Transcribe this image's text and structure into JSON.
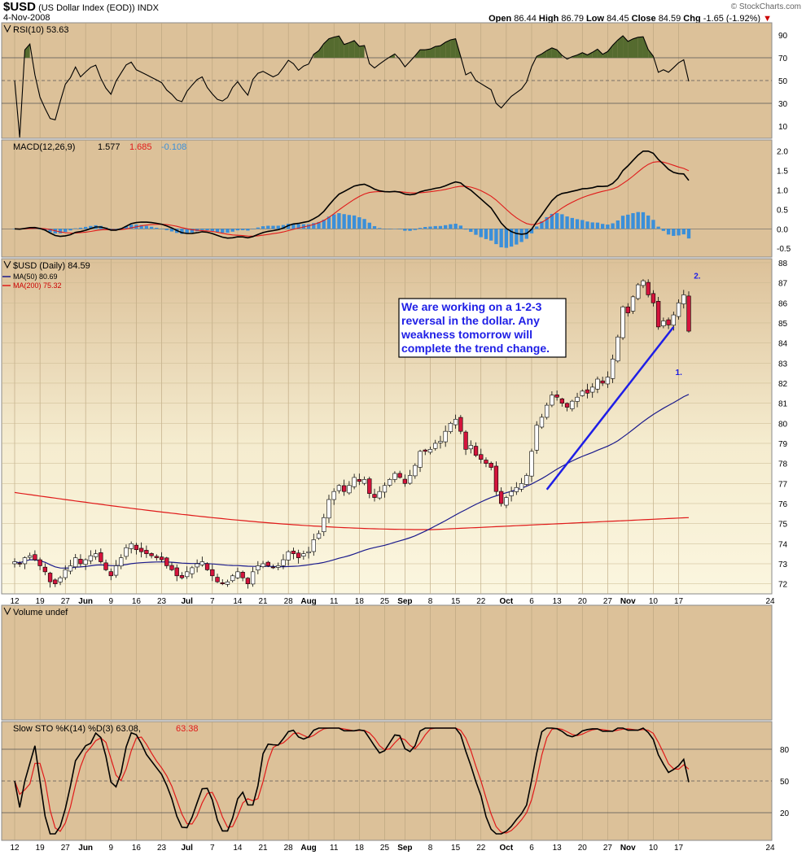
{
  "header": {
    "symbol": "$USD",
    "description": "(US Dollar Index (EOD))",
    "exchange": "INDX",
    "date": "4-Nov-2008",
    "watermark": "© StockCharts.com",
    "open_label": "Open",
    "open": "86.44",
    "high_label": "High",
    "high": "86.79",
    "low_label": "Low",
    "low": "84.45",
    "close_label": "Close",
    "close": "84.59",
    "chg_label": "Chg",
    "chg": "-1.65 (-1.92%)"
  },
  "colors": {
    "panel_bg": "#dcc199",
    "panel_bg_light": "#f5eccf",
    "up_candle": "#ffffff",
    "down_candle": "#d4143c",
    "ma50": "#1a1a8c",
    "ma200": "#e01a1a",
    "trendline": "#1e1ee6",
    "rsi_fill": "#556b2f",
    "macd_hist": "#3a8fd9"
  },
  "x_axis": {
    "labels": [
      "12",
      "19",
      "27",
      "Jun",
      "9",
      "16",
      "23",
      "Jul",
      "7",
      "14",
      "21",
      "28",
      "Aug",
      "11",
      "18",
      "25",
      "Sep",
      "8",
      "15",
      "22",
      "Oct",
      "6",
      "13",
      "20",
      "27",
      "Nov",
      "10",
      "17",
      "24"
    ],
    "bold_labels": [
      "Jun",
      "Jul",
      "Aug",
      "Sep",
      "Oct",
      "Nov"
    ]
  },
  "panels": {
    "rsi": {
      "title": "RSI(10) 53.63",
      "ticks": [
        "90",
        "70",
        "50",
        "30",
        "10"
      ]
    },
    "macd": {
      "title": "MACD(12,26,9)",
      "macd": "1.577",
      "signal": "1.685",
      "hist": "-0.108",
      "ticks": [
        "2.0",
        "1.5",
        "1.0",
        "0.5",
        "0.0",
        "-0.5"
      ]
    },
    "price": {
      "title": "$USD (Daily) 84.59",
      "ma50_label": "MA(50) 80.69",
      "ma200_label": "MA(200) 75.32",
      "ticks": [
        "88",
        "87",
        "86",
        "85",
        "84",
        "83",
        "82",
        "81",
        "80",
        "79",
        "78",
        "77",
        "76",
        "75",
        "74",
        "73",
        "72"
      ]
    },
    "volume": {
      "title": "Volume undef"
    },
    "sto": {
      "title": "Slow STO %K(14) %D(3) 63.08,",
      "d_value": "63.38",
      "ticks": [
        "80",
        "50",
        "20"
      ]
    }
  },
  "annotation": {
    "lines": [
      "We are working on a 1-2-3",
      "reversal in the dollar. Any",
      "weakness tomorrow will",
      "complete the trend change."
    ],
    "label_1": "1.",
    "label_2": "2."
  },
  "chart_data": {
    "type": "candlestick",
    "title": "$USD (US Dollar Index (EOD))",
    "date_range": [
      "2008-05-12",
      "2008-11-04"
    ],
    "last": {
      "date": "2008-11-04",
      "open": 86.44,
      "high": 86.79,
      "low": 84.45,
      "close": 84.59,
      "change": -1.65,
      "change_pct": -1.92
    },
    "price_ylim": [
      71.5,
      88.2
    ],
    "ma50_last": 80.69,
    "ma200_last": 75.32,
    "rsi_last": 53.63,
    "macd_last": {
      "macd": 1.577,
      "signal": 1.685,
      "histogram": -0.108
    },
    "slow_sto_last": {
      "k": 63.08,
      "d": 63.38
    },
    "close_series": [
      73.1,
      73.0,
      73.3,
      73.4,
      73.2,
      72.9,
      72.6,
      72.1,
      72.0,
      72.3,
      72.7,
      72.9,
      73.3,
      73.0,
      73.2,
      73.4,
      73.5,
      73.1,
      72.7,
      72.4,
      72.9,
      73.3,
      73.8,
      74.0,
      73.7,
      73.6,
      73.5,
      73.4,
      73.3,
      73.2,
      72.9,
      72.7,
      72.4,
      72.3,
      72.6,
      72.8,
      73.0,
      73.1,
      72.7,
      72.4,
      72.1,
      72.0,
      72.1,
      72.4,
      72.6,
      72.3,
      72.0,
      72.6,
      72.9,
      73.0,
      72.9,
      72.8,
      72.9,
      73.2,
      73.6,
      73.5,
      73.3,
      73.5,
      73.6,
      74.2,
      74.5,
      75.3,
      76.2,
      76.6,
      76.9,
      76.6,
      76.9,
      77.3,
      77.1,
      77.2,
      76.5,
      76.3,
      76.6,
      76.9,
      77.2,
      77.5,
      77.3,
      77.0,
      77.4,
      77.9,
      78.6,
      78.6,
      78.7,
      79.0,
      79.1,
      79.6,
      80.0,
      80.2,
      79.6,
      78.7,
      78.9,
      78.4,
      78.2,
      78.0,
      77.8,
      76.6,
      76.0,
      76.3,
      76.6,
      76.8,
      77.0,
      77.4,
      78.6,
      79.9,
      80.3,
      80.9,
      81.4,
      81.3,
      81.0,
      80.8,
      81.1,
      81.3,
      81.6,
      81.5,
      81.8,
      82.2,
      82.0,
      82.3,
      83.2,
      84.3,
      85.8,
      85.5,
      86.3,
      86.9,
      87.1,
      86.4,
      86.0,
      84.8,
      85.1,
      84.9,
      85.4,
      86.0,
      86.4,
      84.59
    ]
  }
}
